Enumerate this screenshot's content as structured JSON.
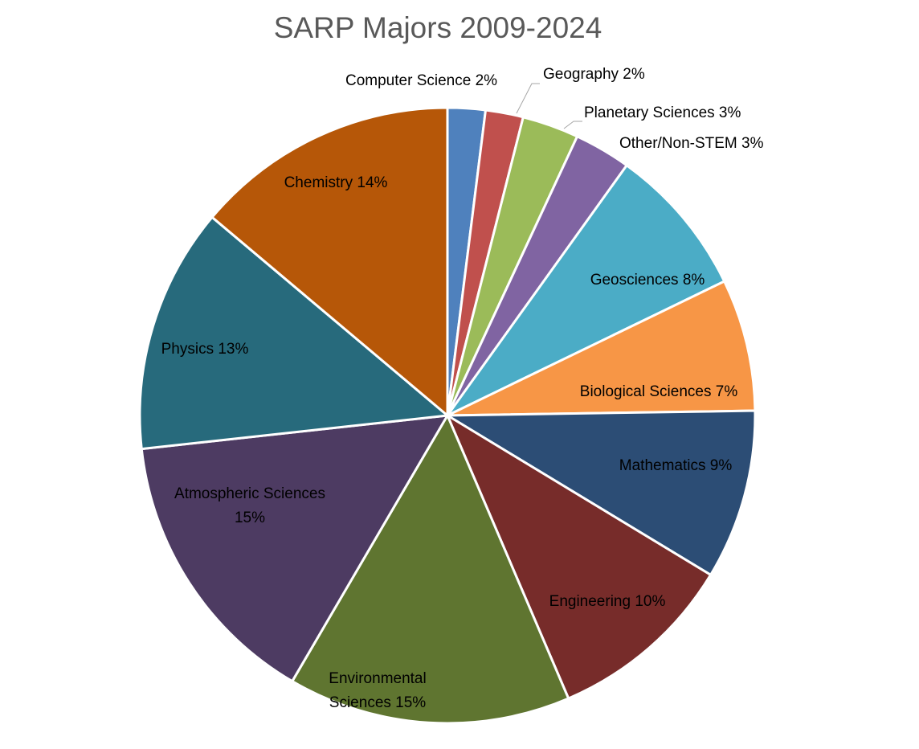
{
  "chart_data": {
    "type": "pie",
    "title": "SARP Majors 2009-2024",
    "start_angle": "top",
    "direction": "clockwise",
    "slices": [
      {
        "label": "Computer Science",
        "value": 2,
        "color": "#4F81BD"
      },
      {
        "label": "Geography",
        "value": 2,
        "color": "#C0504D"
      },
      {
        "label": "Planetary Sciences",
        "value": 3,
        "color": "#9BBB59"
      },
      {
        "label": "Other/Non-STEM",
        "value": 3,
        "color": "#8064A2"
      },
      {
        "label": "Geosciences",
        "value": 8,
        "color": "#4BACC6"
      },
      {
        "label": "Biological Sciences",
        "value": 7,
        "color": "#F79646"
      },
      {
        "label": "Mathematics",
        "value": 9,
        "color": "#2C4D75"
      },
      {
        "label": "Engineering",
        "value": 10,
        "color": "#772C2A"
      },
      {
        "label": "Environmental Sciences",
        "value": 15,
        "color": "#5F7530"
      },
      {
        "label": "Atmospheric Sciences",
        "value": 15,
        "color": "#4D3B62"
      },
      {
        "label": "Physics",
        "value": 13,
        "color": "#276A7C"
      },
      {
        "label": "Chemistry",
        "value": 14,
        "color": "#B65708"
      }
    ],
    "data_labels": [
      "Computer Science 2%",
      "Geography 2%",
      "Planetary Sciences 3%",
      "Other/Non-STEM 3%",
      "Geosciences 8%",
      "Biological Sciences 7%",
      "Mathematics 9%",
      "Engineering 10%",
      [
        "Environmental",
        "Sciences 15%"
      ],
      [
        "Atmospheric Sciences",
        "15%"
      ],
      "Physics 13%",
      "Chemistry 14%"
    ]
  }
}
